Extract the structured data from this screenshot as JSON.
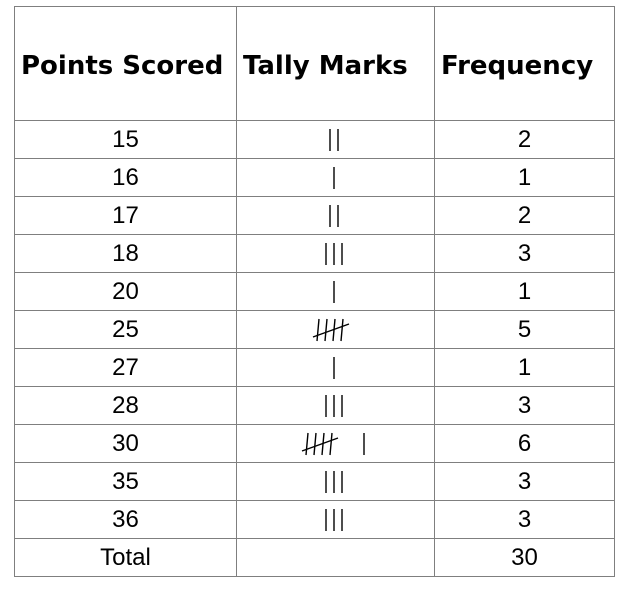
{
  "table": {
    "headers": [
      "Points Scored",
      "Tally Marks",
      "Frequency"
    ],
    "rows": [
      {
        "points": "15",
        "tally": 2,
        "frequency": "2"
      },
      {
        "points": "16",
        "tally": 1,
        "frequency": "1"
      },
      {
        "points": "17",
        "tally": 2,
        "frequency": "2"
      },
      {
        "points": "18",
        "tally": 3,
        "frequency": "3"
      },
      {
        "points": "20",
        "tally": 1,
        "frequency": "1"
      },
      {
        "points": "25",
        "tally": 5,
        "frequency": "5"
      },
      {
        "points": "27",
        "tally": 1,
        "frequency": "1"
      },
      {
        "points": "28",
        "tally": 3,
        "frequency": "3"
      },
      {
        "points": "30",
        "tally": 6,
        "frequency": "6"
      },
      {
        "points": "35",
        "tally": 3,
        "frequency": "3"
      },
      {
        "points": "36",
        "tally": 3,
        "frequency": "3"
      }
    ],
    "total_label": "Total",
    "total_value": "30"
  }
}
